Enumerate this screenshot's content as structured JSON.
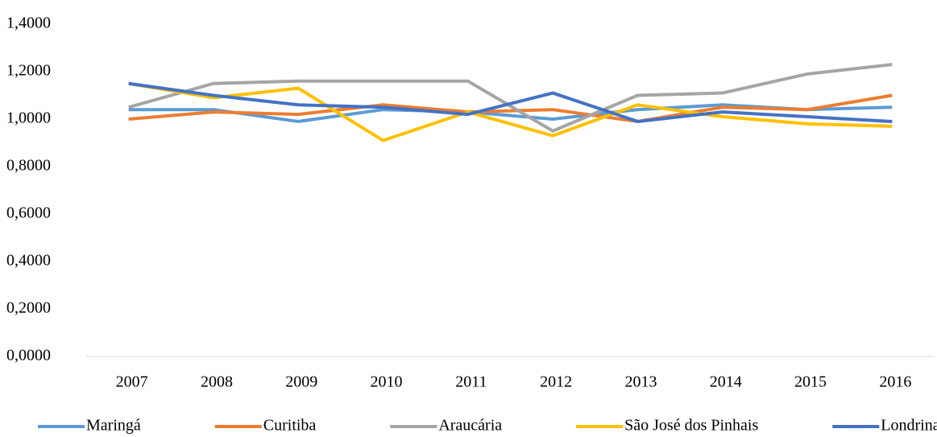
{
  "chart_data": {
    "type": "line",
    "categories": [
      "2007",
      "2008",
      "2009",
      "2010",
      "2011",
      "2012",
      "2013",
      "2014",
      "2015",
      "2016"
    ],
    "series": [
      {
        "name": "Maringá",
        "color": "#5b9bd5",
        "values": [
          1.04,
          1.04,
          0.99,
          1.04,
          1.03,
          1.0,
          1.04,
          1.06,
          1.04,
          1.05
        ]
      },
      {
        "name": "Curitiba",
        "color": "#ed7d31",
        "values": [
          1.0,
          1.03,
          1.02,
          1.06,
          1.03,
          1.04,
          0.99,
          1.05,
          1.04,
          1.1
        ]
      },
      {
        "name": "Araucária",
        "color": "#a5a5a5",
        "values": [
          1.05,
          1.15,
          1.16,
          1.16,
          1.16,
          0.95,
          1.1,
          1.11,
          1.19,
          1.23
        ]
      },
      {
        "name": "São José dos Pinhais",
        "color": "#ffc000",
        "values": [
          1.15,
          1.09,
          1.13,
          0.91,
          1.03,
          0.93,
          1.06,
          1.01,
          0.98,
          0.97
        ]
      },
      {
        "name": "Londrina",
        "color": "#4472c4",
        "values": [
          1.15,
          1.1,
          1.06,
          1.05,
          1.02,
          1.11,
          0.99,
          1.03,
          1.01,
          0.99
        ]
      }
    ],
    "ylim": [
      0,
      1.4
    ],
    "yticks": [
      {
        "value": 0,
        "label": "0,0000"
      },
      {
        "value": 0.2,
        "label": "0,2000"
      },
      {
        "value": 0.4,
        "label": "0,4000"
      },
      {
        "value": 0.6,
        "label": "0,6000"
      },
      {
        "value": 0.8,
        "label": "0,8000"
      },
      {
        "value": 1.0,
        "label": "1,0000"
      },
      {
        "value": 1.2,
        "label": "1,2000"
      },
      {
        "value": 1.4,
        "label": "1,4000"
      }
    ],
    "grid": false,
    "legend": "bottom"
  }
}
